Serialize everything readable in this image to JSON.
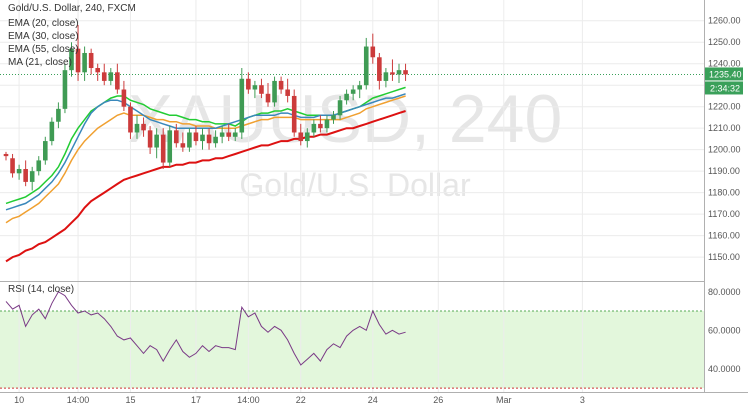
{
  "header": {
    "title": "Gold/U.S. Dollar, 240, FXCM",
    "legend": [
      "EMA (20, close)",
      "EMA (30, close)",
      "EMA (55, close)",
      "MA (21, close)"
    ],
    "rsi_label": "RSI (14, close)"
  },
  "watermark": {
    "symbol": "XAUUSD, 240",
    "description": "Gold/U.S. Dollar"
  },
  "price_badge": {
    "price": "1235.40",
    "countdown": "2:34:32"
  },
  "colors": {
    "up": "#3f9b54",
    "down": "#cc3b3b",
    "ema20": "#22cc33",
    "ema30": "#f0a030",
    "ema55": "#3a88bb",
    "ma21": "#dd1111",
    "rsi": "#7a3a86",
    "rsi_band": "#e3f7dc",
    "price_line": "#3aa05a",
    "badge": "#3aa05a"
  },
  "chart_data": {
    "type": "candlestick",
    "title": "Gold/U.S. Dollar, 240, FXCM",
    "price_axis": {
      "ticks": [
        "1260.00",
        "1250.00",
        "1240.00",
        "1230.00",
        "1220.00",
        "1210.00",
        "1200.00",
        "1190.00",
        "1180.00",
        "1170.00",
        "1160.00",
        "1150.00"
      ],
      "ylim": [
        1144,
        1265
      ]
    },
    "rsi_axis": {
      "ticks": [
        "80.0000",
        "60.0000",
        "40.0000"
      ],
      "ylim": [
        29,
        83
      ],
      "band": [
        30,
        70
      ]
    },
    "x_ticks": [
      {
        "label": "10",
        "bar": 2
      },
      {
        "label": "14:00",
        "bar": 11
      },
      {
        "label": "15",
        "bar": 19
      },
      {
        "label": "17",
        "bar": 29
      },
      {
        "label": "14:00",
        "bar": 37
      },
      {
        "label": "22",
        "bar": 45
      },
      {
        "label": "24",
        "bar": 56
      },
      {
        "label": "26",
        "bar": 66
      },
      {
        "label": "Mar",
        "bar": 76
      },
      {
        "label": "3",
        "bar": 88
      }
    ],
    "candles": [
      {
        "o": 1198,
        "h": 1199,
        "l": 1195,
        "c": 1197
      },
      {
        "o": 1196,
        "h": 1198,
        "l": 1187,
        "c": 1189
      },
      {
        "o": 1189,
        "h": 1193,
        "l": 1186,
        "c": 1191
      },
      {
        "o": 1191,
        "h": 1195,
        "l": 1183,
        "c": 1185
      },
      {
        "o": 1185,
        "h": 1192,
        "l": 1181,
        "c": 1190
      },
      {
        "o": 1190,
        "h": 1197,
        "l": 1188,
        "c": 1195
      },
      {
        "o": 1195,
        "h": 1206,
        "l": 1193,
        "c": 1204
      },
      {
        "o": 1204,
        "h": 1215,
        "l": 1202,
        "c": 1213
      },
      {
        "o": 1213,
        "h": 1222,
        "l": 1210,
        "c": 1219
      },
      {
        "o": 1219,
        "h": 1240,
        "l": 1217,
        "c": 1237
      },
      {
        "o": 1237,
        "h": 1250,
        "l": 1234,
        "c": 1247
      },
      {
        "o": 1247,
        "h": 1258,
        "l": 1232,
        "c": 1236
      },
      {
        "o": 1236,
        "h": 1248,
        "l": 1232,
        "c": 1245
      },
      {
        "o": 1245,
        "h": 1247,
        "l": 1235,
        "c": 1238
      },
      {
        "o": 1238,
        "h": 1240,
        "l": 1232,
        "c": 1236
      },
      {
        "o": 1236,
        "h": 1240,
        "l": 1230,
        "c": 1232
      },
      {
        "o": 1232,
        "h": 1238,
        "l": 1230,
        "c": 1236
      },
      {
        "o": 1236,
        "h": 1240,
        "l": 1226,
        "c": 1228
      },
      {
        "o": 1228,
        "h": 1232,
        "l": 1218,
        "c": 1220
      },
      {
        "o": 1220,
        "h": 1222,
        "l": 1205,
        "c": 1208
      },
      {
        "o": 1208,
        "h": 1216,
        "l": 1205,
        "c": 1212
      },
      {
        "o": 1212,
        "h": 1215,
        "l": 1206,
        "c": 1209
      },
      {
        "o": 1209,
        "h": 1211,
        "l": 1198,
        "c": 1201
      },
      {
        "o": 1201,
        "h": 1210,
        "l": 1196,
        "c": 1207
      },
      {
        "o": 1207,
        "h": 1210,
        "l": 1191,
        "c": 1194
      },
      {
        "o": 1194,
        "h": 1211,
        "l": 1192,
        "c": 1209
      },
      {
        "o": 1209,
        "h": 1212,
        "l": 1201,
        "c": 1203
      },
      {
        "o": 1203,
        "h": 1208,
        "l": 1199,
        "c": 1201
      },
      {
        "o": 1201,
        "h": 1210,
        "l": 1199,
        "c": 1208
      },
      {
        "o": 1208,
        "h": 1211,
        "l": 1202,
        "c": 1204
      },
      {
        "o": 1204,
        "h": 1210,
        "l": 1200,
        "c": 1207
      },
      {
        "o": 1207,
        "h": 1210,
        "l": 1200,
        "c": 1203
      },
      {
        "o": 1203,
        "h": 1209,
        "l": 1201,
        "c": 1206
      },
      {
        "o": 1206,
        "h": 1211,
        "l": 1203,
        "c": 1208
      },
      {
        "o": 1208,
        "h": 1212,
        "l": 1204,
        "c": 1206
      },
      {
        "o": 1206,
        "h": 1210,
        "l": 1204,
        "c": 1208
      },
      {
        "o": 1208,
        "h": 1238,
        "l": 1205,
        "c": 1233
      },
      {
        "o": 1233,
        "h": 1236,
        "l": 1226,
        "c": 1228
      },
      {
        "o": 1228,
        "h": 1232,
        "l": 1224,
        "c": 1230
      },
      {
        "o": 1230,
        "h": 1233,
        "l": 1224,
        "c": 1226
      },
      {
        "o": 1226,
        "h": 1231,
        "l": 1220,
        "c": 1222
      },
      {
        "o": 1222,
        "h": 1234,
        "l": 1220,
        "c": 1232
      },
      {
        "o": 1232,
        "h": 1234,
        "l": 1226,
        "c": 1228
      },
      {
        "o": 1228,
        "h": 1233,
        "l": 1222,
        "c": 1225
      },
      {
        "o": 1225,
        "h": 1228,
        "l": 1206,
        "c": 1208
      },
      {
        "o": 1208,
        "h": 1212,
        "l": 1202,
        "c": 1204
      },
      {
        "o": 1204,
        "h": 1210,
        "l": 1201,
        "c": 1208
      },
      {
        "o": 1208,
        "h": 1214,
        "l": 1206,
        "c": 1212
      },
      {
        "o": 1212,
        "h": 1216,
        "l": 1208,
        "c": 1210
      },
      {
        "o": 1210,
        "h": 1216,
        "l": 1208,
        "c": 1214
      },
      {
        "o": 1214,
        "h": 1218,
        "l": 1212,
        "c": 1216
      },
      {
        "o": 1216,
        "h": 1225,
        "l": 1214,
        "c": 1223
      },
      {
        "o": 1223,
        "h": 1228,
        "l": 1221,
        "c": 1226
      },
      {
        "o": 1226,
        "h": 1230,
        "l": 1223,
        "c": 1228
      },
      {
        "o": 1228,
        "h": 1232,
        "l": 1224,
        "c": 1230
      },
      {
        "o": 1230,
        "h": 1252,
        "l": 1228,
        "c": 1248
      },
      {
        "o": 1248,
        "h": 1254,
        "l": 1240,
        "c": 1243
      },
      {
        "o": 1243,
        "h": 1245,
        "l": 1228,
        "c": 1232
      },
      {
        "o": 1232,
        "h": 1238,
        "l": 1229,
        "c": 1236
      },
      {
        "o": 1236,
        "h": 1242,
        "l": 1232,
        "c": 1235
      },
      {
        "o": 1235,
        "h": 1240,
        "l": 1231,
        "c": 1237
      },
      {
        "o": 1237,
        "h": 1240,
        "l": 1232,
        "c": 1235
      }
    ],
    "series": [
      {
        "name": "EMA (20, close)",
        "values": [
          1175,
          1176,
          1177,
          1178,
          1180,
          1182,
          1185,
          1188,
          1192,
          1198,
          1205,
          1210,
          1214,
          1218,
          1220,
          1222,
          1224,
          1225,
          1225,
          1223,
          1222,
          1221,
          1219,
          1218,
          1217,
          1216,
          1216,
          1215,
          1214,
          1214,
          1213,
          1213,
          1212,
          1212,
          1212,
          1211,
          1213,
          1215,
          1216,
          1217,
          1217,
          1218,
          1218,
          1219,
          1218,
          1217,
          1216,
          1216,
          1216,
          1216,
          1216,
          1217,
          1218,
          1219,
          1220,
          1222,
          1224,
          1225,
          1226,
          1227,
          1228,
          1229
        ]
      },
      {
        "name": "EMA (30, close)",
        "values": [
          1166,
          1168,
          1169,
          1171,
          1173,
          1175,
          1178,
          1181,
          1184,
          1189,
          1195,
          1200,
          1204,
          1207,
          1210,
          1212,
          1214,
          1216,
          1217,
          1216,
          1216,
          1216,
          1215,
          1214,
          1214,
          1213,
          1213,
          1212,
          1212,
          1211,
          1211,
          1211,
          1210,
          1210,
          1210,
          1210,
          1211,
          1212,
          1213,
          1214,
          1214,
          1215,
          1215,
          1215,
          1215,
          1214,
          1214,
          1214,
          1214,
          1214,
          1214,
          1214,
          1215,
          1216,
          1217,
          1219,
          1220,
          1221,
          1222,
          1223,
          1224,
          1225
        ]
      },
      {
        "name": "EMA (55, close)",
        "values": [
          1172,
          1173,
          1174,
          1175,
          1177,
          1179,
          1182,
          1185,
          1189,
          1194,
          1200,
          1206,
          1212,
          1217,
          1220,
          1222,
          1223,
          1223,
          1222,
          1220,
          1218,
          1216,
          1214,
          1213,
          1212,
          1211,
          1210,
          1210,
          1210,
          1210,
          1210,
          1210,
          1210,
          1211,
          1212,
          1213,
          1214,
          1215,
          1216,
          1216,
          1216,
          1216,
          1217,
          1217,
          1216,
          1215,
          1215,
          1215,
          1216,
          1216,
          1216,
          1217,
          1218,
          1219,
          1220,
          1221,
          1222,
          1223,
          1224,
          1224,
          1225,
          1226
        ]
      },
      {
        "name": "MA (21, close)",
        "values": [
          1148,
          1150,
          1151,
          1153,
          1154,
          1156,
          1157,
          1159,
          1161,
          1163,
          1166,
          1169,
          1173,
          1176,
          1178,
          1180,
          1182,
          1184,
          1186,
          1187,
          1188,
          1189,
          1190,
          1191,
          1192,
          1192,
          1193,
          1193,
          1194,
          1194,
          1195,
          1195,
          1196,
          1196,
          1197,
          1198,
          1199,
          1200,
          1201,
          1202,
          1202,
          1203,
          1204,
          1204,
          1205,
          1205,
          1206,
          1206,
          1207,
          1207,
          1208,
          1209,
          1210,
          1210,
          1211,
          1212,
          1213,
          1214,
          1215,
          1216,
          1217,
          1218
        ]
      }
    ],
    "rsi": [
      75,
      71,
      73,
      62,
      68,
      71,
      66,
      74,
      80,
      78,
      73,
      69,
      70,
      68,
      69,
      66,
      62,
      57,
      55,
      56,
      52,
      48,
      52,
      50,
      44,
      50,
      55,
      49,
      46,
      48,
      52,
      49,
      52,
      51,
      51,
      50,
      72,
      67,
      69,
      62,
      59,
      62,
      60,
      55,
      48,
      42,
      45,
      48,
      44,
      50,
      53,
      51,
      57,
      60,
      62,
      60,
      70,
      63,
      58,
      60,
      58,
      59
    ]
  }
}
